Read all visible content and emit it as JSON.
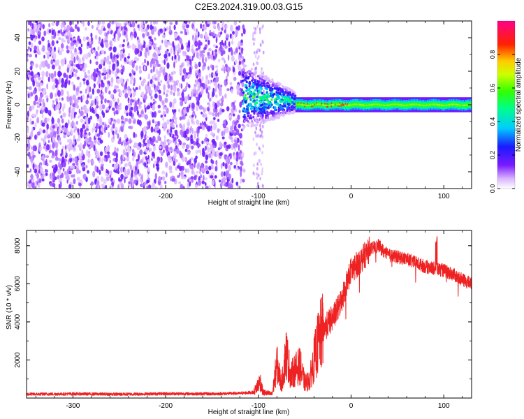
{
  "title": "C2E3.2024.319.00.03.G15",
  "colors": {
    "snr_line": "#ee2222",
    "plasma_low": "#c9a8ff",
    "plasma_high": "#7a1aff"
  },
  "chart_data": [
    {
      "type": "heatmap",
      "xlabel": "Height of straight line (km)",
      "ylabel": "Frequency (Hz)",
      "xlim": [
        -350,
        130
      ],
      "ylim": [
        -50,
        50
      ],
      "x_ticks": [
        -300,
        -200,
        -100,
        0,
        100
      ],
      "y_ticks": [
        -40,
        -20,
        0,
        20,
        40
      ],
      "x_tick_labels": [
        "-300",
        "-200",
        "-100",
        "0",
        "100"
      ],
      "y_tick_labels": [
        "-40",
        "-20",
        "0",
        "20",
        "40"
      ],
      "colorbar": {
        "label": "Normalized spectral amplitude",
        "range": [
          0.0,
          1.0
        ],
        "ticks": [
          0.0,
          0.2,
          0.4,
          0.6,
          0.8
        ],
        "tick_labels": [
          "0.0",
          "0.2",
          "0.4",
          "0.6",
          "0.8"
        ],
        "colormap": "rainbow (violet -> blue -> cyan -> green -> yellow -> red -> magenta)"
      },
      "regions": [
        {
          "x_range": [
            -350,
            -117
          ],
          "description_level": 0.15
        },
        {
          "x_range": [
            -117,
            -60
          ],
          "center_hz": 5,
          "amplitude_max": 0.55
        },
        {
          "x_range": [
            -60,
            130
          ],
          "center_hz": 0,
          "amplitude_max": 0.95
        }
      ]
    },
    {
      "type": "line",
      "xlabel": "Height of straight line (km)",
      "ylabel": "SNR (10 * v/v)",
      "xlim": [
        -350,
        130
      ],
      "ylim": [
        0,
        8800
      ],
      "x_ticks": [
        -300,
        -200,
        -100,
        0,
        100
      ],
      "y_ticks": [
        2000,
        4000,
        6000,
        8000
      ],
      "x_tick_labels": [
        "-300",
        "-200",
        "-100",
        "0",
        "100"
      ],
      "y_tick_labels": [
        "2000",
        "4000",
        "6000",
        "8000"
      ],
      "series": [
        {
          "x": [
            -350,
            -300,
            -250,
            -200,
            -150,
            -120,
            -105,
            -98,
            -95,
            -90,
            -85,
            -80,
            -75,
            -70,
            -65,
            -60,
            -55,
            -50,
            -45,
            -40,
            -35,
            -30,
            -25,
            -20,
            -15,
            -10,
            -5,
            0,
            10,
            20,
            25,
            30,
            35,
            40,
            50,
            60,
            70,
            80,
            90,
            100,
            110,
            120,
            130
          ],
          "y": [
            200,
            220,
            200,
            230,
            220,
            250,
            300,
            900,
            300,
            250,
            200,
            1800,
            700,
            2400,
            1200,
            1500,
            1700,
            800,
            900,
            2000,
            3000,
            3600,
            3900,
            4200,
            4600,
            5200,
            6000,
            6700,
            7200,
            7800,
            7900,
            8000,
            7700,
            7500,
            7400,
            7300,
            7100,
            6900,
            6800,
            6700,
            6500,
            6200,
            6000
          ]
        }
      ]
    }
  ]
}
